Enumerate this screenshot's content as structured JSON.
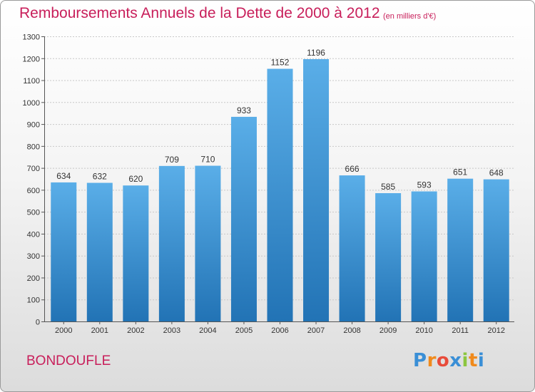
{
  "chart_data": {
    "type": "bar",
    "title": "Remboursements Annuels de la Dette de 2000 à 2012",
    "unit_note": "(en milliers d'€)",
    "categories": [
      "2000",
      "2001",
      "2002",
      "2003",
      "2004",
      "2005",
      "2006",
      "2007",
      "2008",
      "2009",
      "2010",
      "2011",
      "2012"
    ],
    "values": [
      634,
      632,
      620,
      709,
      710,
      933,
      1152,
      1196,
      666,
      585,
      593,
      651,
      648
    ],
    "ylim": [
      0,
      1300
    ],
    "yticks": [
      0,
      100,
      200,
      300,
      400,
      500,
      600,
      700,
      800,
      900,
      1000,
      1100,
      1200,
      1300
    ],
    "grid": true,
    "bar_color_top": "#5aaee8",
    "bar_color_bottom": "#2273b5"
  },
  "footer": {
    "city": "BONDOUFLE",
    "logo_text": "Proxiti",
    "logo_letters": [
      {
        "ch": "P",
        "color": "#3a8fd6"
      },
      {
        "ch": "r",
        "color": "#f08a1c"
      },
      {
        "ch": "o",
        "color": "#e84b3a"
      },
      {
        "ch": "x",
        "color": "#3a8fd6"
      },
      {
        "ch": "i",
        "color": "#8cc63f"
      },
      {
        "ch": "t",
        "color": "#f08a1c"
      },
      {
        "ch": "i",
        "color": "#3a8fd6"
      }
    ]
  }
}
